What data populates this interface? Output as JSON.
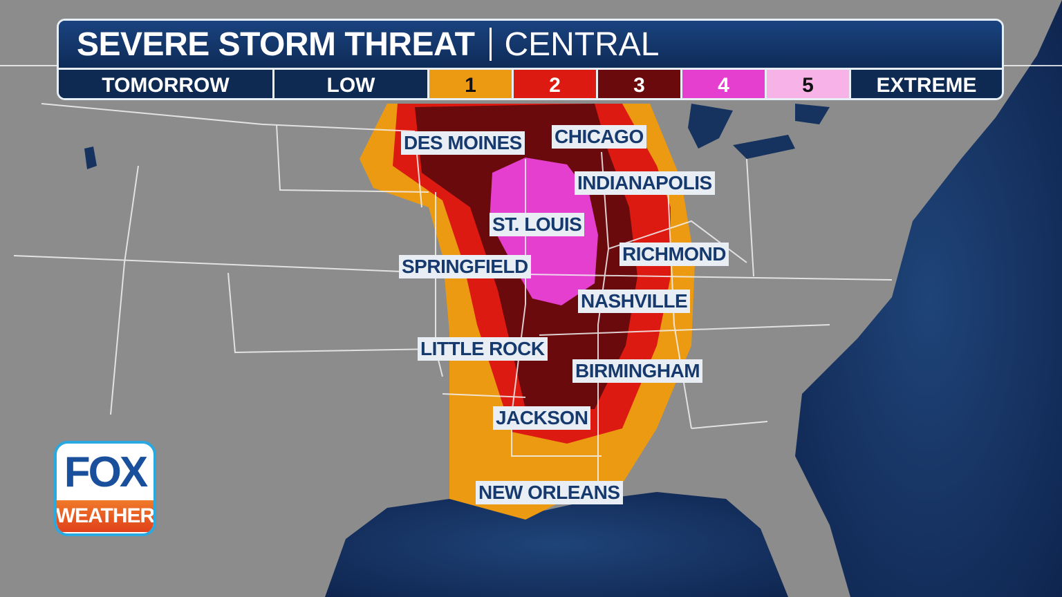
{
  "header": {
    "title": "SEVERE STORM THREAT",
    "region": "CENTRAL"
  },
  "scale": {
    "day": "TOMORROW",
    "low_label": "LOW",
    "high_label": "EXTREME",
    "levels": [
      {
        "label": "1",
        "color": "#ec9a12",
        "text_color": "#111111"
      },
      {
        "label": "2",
        "color": "#dd1a12",
        "text_color": "#ffffff"
      },
      {
        "label": "3",
        "color": "#6b0a0c",
        "text_color": "#ffffff"
      },
      {
        "label": "4",
        "color": "#e43fcf",
        "text_color": "#ffffff"
      },
      {
        "label": "5",
        "color": "#f7b3e8",
        "text_color": "#111111"
      }
    ]
  },
  "cities": [
    "DES MOINES",
    "CHICAGO",
    "INDIANAPOLIS",
    "ST. LOUIS",
    "RICHMOND",
    "SPRINGFIELD",
    "NASHVILLE",
    "LITTLE ROCK",
    "BIRMINGHAM",
    "JACKSON",
    "NEW ORLEANS"
  ],
  "logo": {
    "top": "FOX",
    "bottom": "WEATHER"
  },
  "colors": {
    "land": "#8d8d8d",
    "water": "#15315e",
    "label_bg": "#e9eef5",
    "label_text": "#173a6e"
  }
}
